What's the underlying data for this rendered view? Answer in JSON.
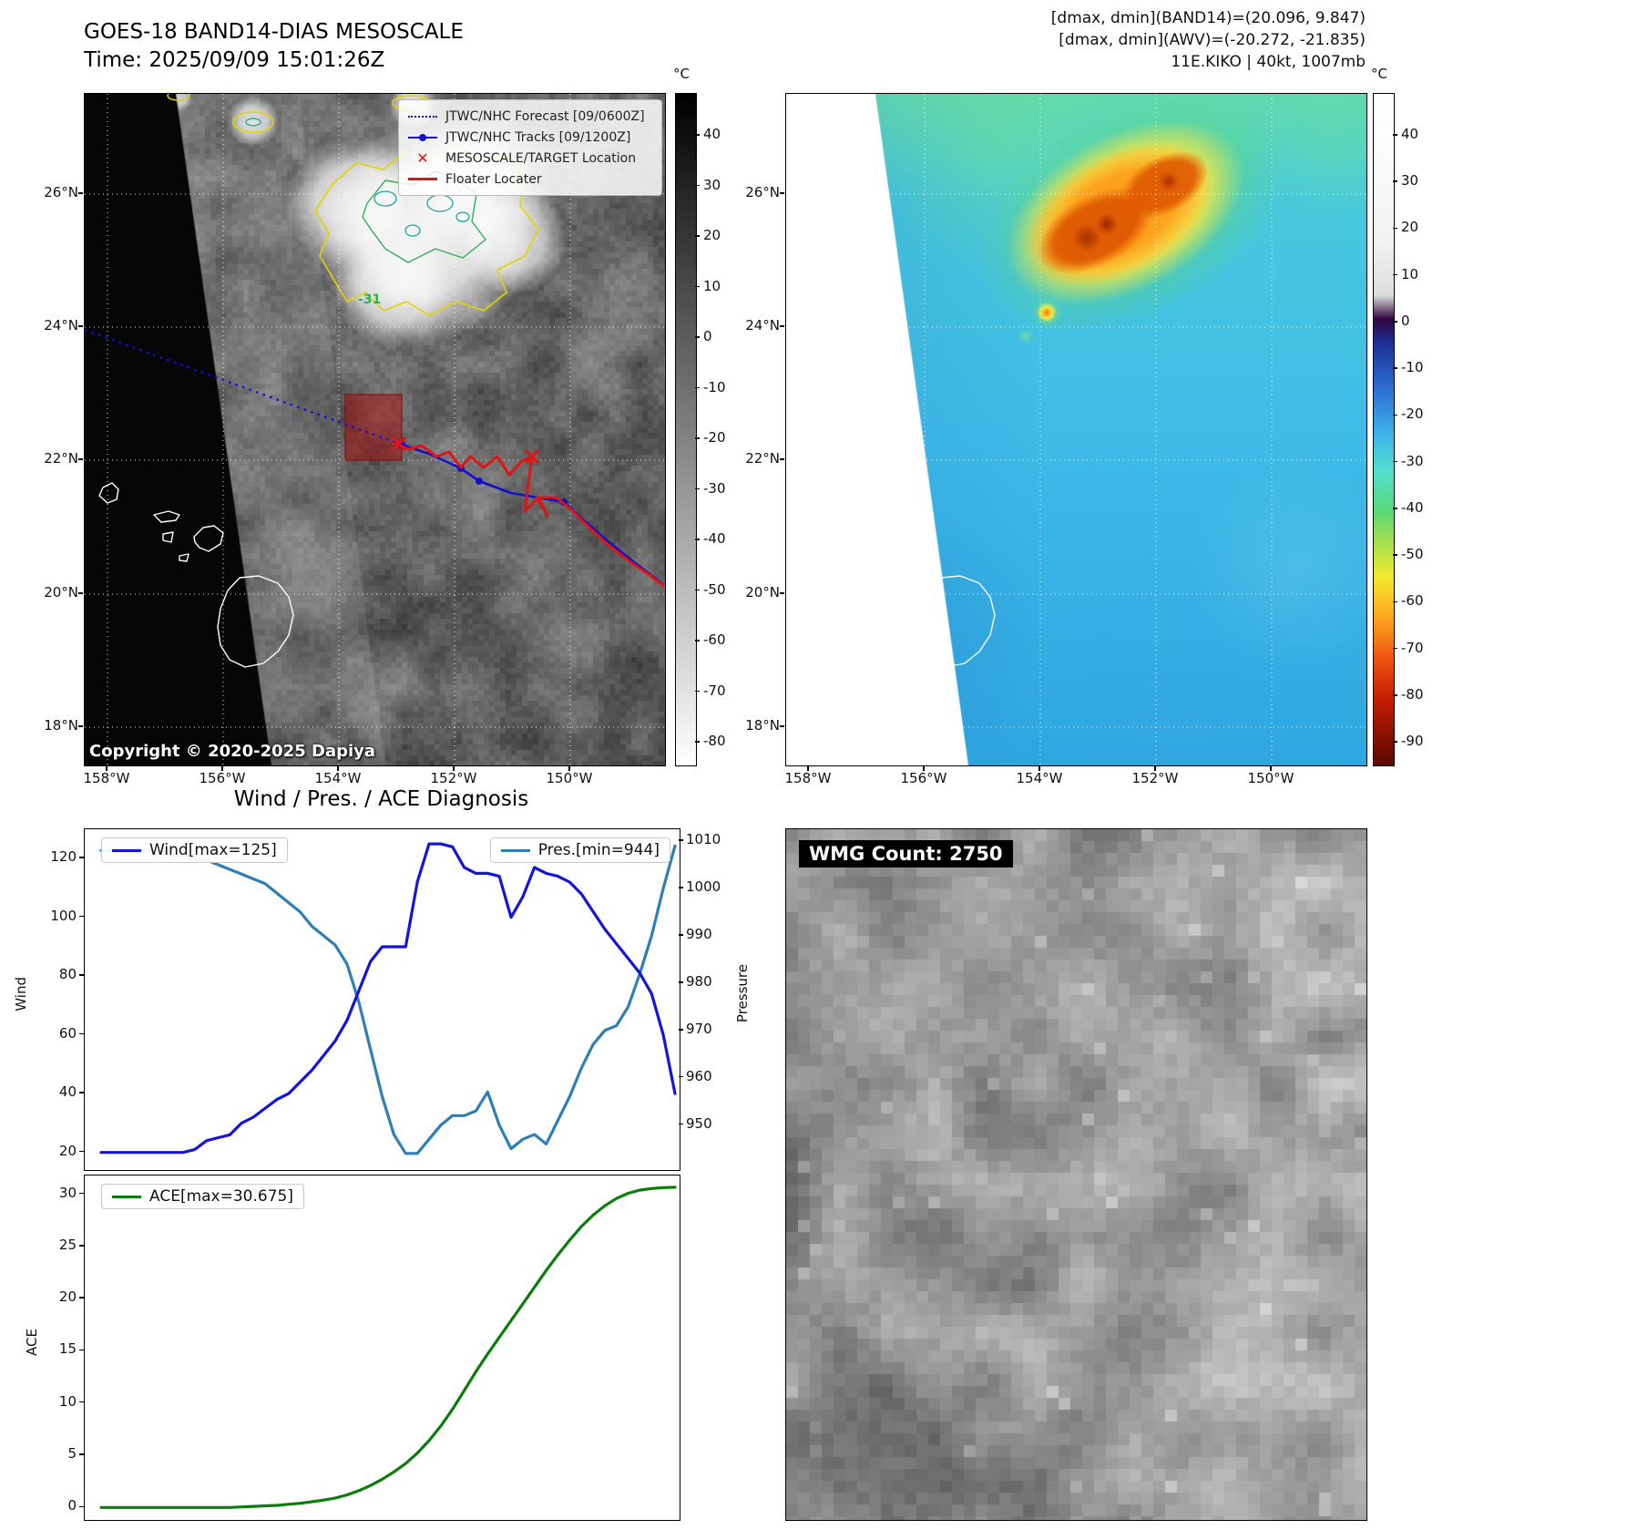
{
  "panel_band14": {
    "title": "GOES-18 BAND14-DIAS MESOSCALE",
    "time_label": "Time: 2025/09/09 15:01:26Z",
    "copyright": "Copyright © 2020-2025 Dapiya",
    "contour_label": "-31",
    "legend": [
      {
        "label": "JTWC/NHC Forecast [09/0600Z]"
      },
      {
        "label": "JTWC/NHC Tracks [09/1200Z]"
      },
      {
        "label": "MESOSCALE/TARGET Location"
      },
      {
        "label": "Floater Locater"
      }
    ],
    "lat_ticks": [
      "26°N",
      "24°N",
      "22°N",
      "20°N",
      "18°N"
    ],
    "lon_ticks": [
      "158°W",
      "156°W",
      "154°W",
      "152°W",
      "150°W"
    ],
    "colorbar": {
      "unit": "°C",
      "ticks": [
        40,
        30,
        20,
        10,
        0,
        -10,
        -20,
        -30,
        -40,
        -50,
        -60,
        -70,
        -80
      ]
    }
  },
  "panel_awv": {
    "header_lines": [
      "[dmax, dmin](BAND14)=(20.096, 9.847)",
      "[dmax, dmin](AWV)=(-20.272, -21.835)",
      "11E.KIKO | 40kt, 1007mb"
    ],
    "lat_ticks": [
      "26°N",
      "24°N",
      "22°N",
      "20°N",
      "18°N"
    ],
    "lon_ticks": [
      "158°W",
      "156°W",
      "154°W",
      "152°W",
      "150°W"
    ],
    "colorbar": {
      "unit": "°C",
      "ticks": [
        40,
        30,
        20,
        10,
        0,
        -10,
        -20,
        -30,
        -40,
        -50,
        -60,
        -70,
        -80,
        -90
      ]
    }
  },
  "diagnosis": {
    "title": "Wind / Pres. / ACE Diagnosis",
    "wind_axis": "Wind",
    "pressure_axis": "Pressure",
    "ace_axis": "ACE"
  },
  "wmg": {
    "badge": "WMG Count: 2750"
  },
  "colors": {
    "wind": "#1414dd",
    "pressure": "#2d7fb5",
    "ace": "#0a7d0a",
    "forecast_track": "#0f0fe6",
    "best_track": "#1111cc",
    "floater": "#e01414",
    "warm_contour": "#e3d400",
    "cold_contour": "#2fae57",
    "meso_box": "#a81414"
  },
  "chart_data": [
    {
      "type": "line",
      "title": "Wind / Pres. / ACE Diagnosis",
      "series": [
        {
          "name": "Wind[max=125]",
          "axis": "left",
          "color": "#1414dd",
          "values": [
            20,
            20,
            20,
            20,
            20,
            20,
            20,
            20,
            21,
            24,
            25,
            26,
            30,
            32,
            35,
            38,
            40,
            44,
            48,
            53,
            58,
            65,
            75,
            85,
            90,
            90,
            90,
            112,
            125,
            125,
            124,
            117,
            115,
            115,
            114,
            100,
            107,
            117,
            115,
            114,
            112,
            108,
            102,
            96,
            91,
            86,
            81,
            74,
            60,
            40
          ]
        },
        {
          "name": "Pres.[min=944]",
          "axis": "right",
          "color": "#2d7fb5",
          "values": [
            1008,
            1008,
            1008,
            1008,
            1008,
            1008,
            1007,
            1007,
            1006,
            1006,
            1005,
            1004,
            1003,
            1002,
            1001,
            999,
            997,
            995,
            992,
            990,
            988,
            984,
            976,
            966,
            956,
            948,
            944,
            944,
            947,
            950,
            952,
            952,
            953,
            957,
            950,
            945,
            947,
            948,
            946,
            951,
            956,
            962,
            967,
            970,
            971,
            975,
            982,
            990,
            1000,
            1009
          ]
        }
      ],
      "ylabel": "Wind",
      "y2label": "Pressure",
      "ylim": [
        14,
        130
      ],
      "y2lim": [
        940.5,
        1012.5
      ],
      "yticks": [
        120,
        100,
        80,
        60,
        40,
        20
      ],
      "y2ticks": [
        1010,
        1000,
        990,
        980,
        970,
        960,
        950
      ],
      "wind_max": 125,
      "pres_min": 944,
      "grid": false,
      "legend_position": "top"
    },
    {
      "type": "line",
      "series": [
        {
          "name": "ACE[max=30.675]",
          "color": "#0a7d0a",
          "values": [
            0,
            0,
            0,
            0,
            0,
            0,
            0,
            0,
            0,
            0,
            0,
            0,
            0.05,
            0.1,
            0.15,
            0.2,
            0.3,
            0.4,
            0.55,
            0.7,
            0.9,
            1.2,
            1.6,
            2.1,
            2.7,
            3.4,
            4.2,
            5.2,
            6.4,
            7.8,
            9.4,
            11.2,
            13,
            14.7,
            16.3,
            17.9,
            19.5,
            21.1,
            22.7,
            24.2,
            25.6,
            26.9,
            28,
            28.9,
            29.6,
            30.1,
            30.4,
            30.55,
            30.64,
            30.675
          ]
        }
      ],
      "ylabel": "ACE",
      "ylim": [
        -1.2,
        31.8
      ],
      "yticks": [
        30,
        25,
        20,
        15,
        10,
        5,
        0
      ],
      "ace_max": 30.675,
      "grid": false,
      "legend_position": "top-left"
    }
  ]
}
